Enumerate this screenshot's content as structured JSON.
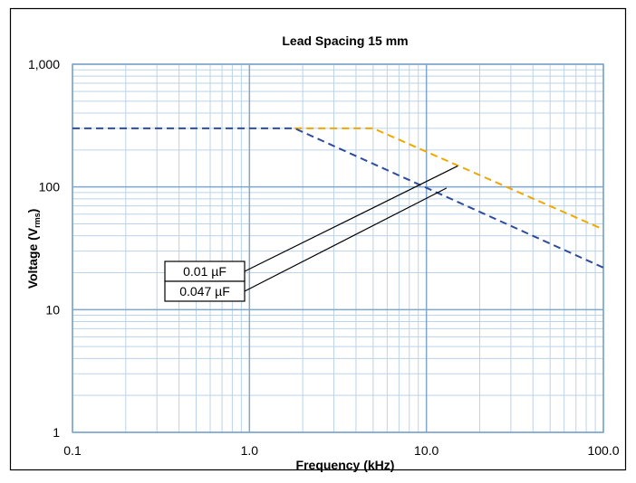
{
  "chart_data": {
    "type": "line",
    "title": "Lead Spacing 15 mm",
    "xlabel": "Frequency (kHz)",
    "ylabel_main": "Voltage (V",
    "ylabel_sub": "rms",
    "ylabel_close": ")",
    "x_scale": "log",
    "y_scale": "log",
    "xlim": [
      0.1,
      100
    ],
    "ylim": [
      1,
      1000
    ],
    "grid": true,
    "x_ticks": [
      {
        "value": 0.1,
        "label": "0.1"
      },
      {
        "value": 1,
        "label": "1.0"
      },
      {
        "value": 10,
        "label": "10.0"
      },
      {
        "value": 100,
        "label": "100.0"
      }
    ],
    "y_ticks": [
      {
        "value": 1,
        "label": "1"
      },
      {
        "value": 10,
        "label": "10"
      },
      {
        "value": 100,
        "label": "100"
      },
      {
        "value": 1000,
        "label": "1,000"
      }
    ],
    "series": [
      {
        "name": "0.01 µF",
        "color": "#F0A800",
        "style": "dashed",
        "x": [
          1.8,
          5,
          100
        ],
        "y": [
          300,
          300,
          45
        ]
      },
      {
        "name": "0.047 µF",
        "color": "#2E4C9E",
        "style": "dashed",
        "x": [
          0.1,
          1.8,
          100
        ],
        "y": [
          300,
          300,
          22
        ]
      }
    ],
    "callouts": [
      {
        "label": "0.01  µF",
        "series": 0,
        "point_x": 15,
        "point_y": 148
      },
      {
        "label": "0.047 µF",
        "series": 1,
        "point_x": 13,
        "point_y": 98
      }
    ]
  }
}
